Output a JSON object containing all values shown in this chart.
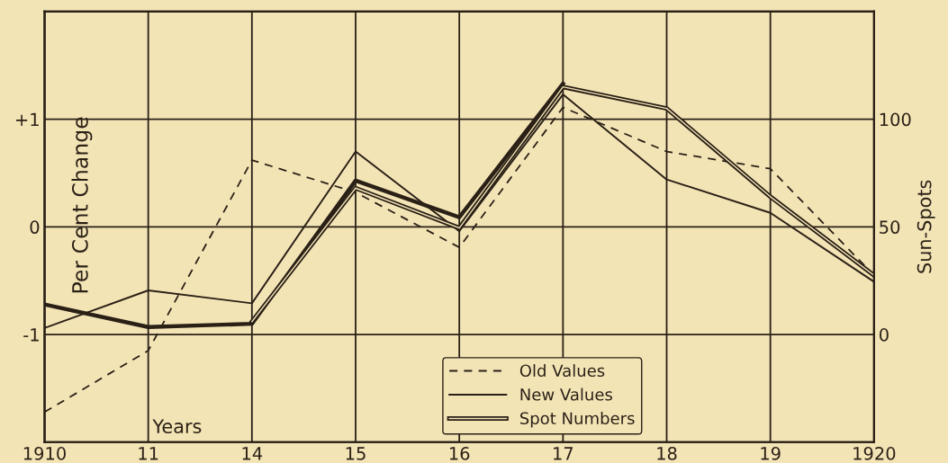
{
  "chart_data": {
    "type": "line",
    "ylabel": "Per Cent Change",
    "y2label": "Sun-Spots",
    "xlabel": "Years",
    "categories": [
      "1910",
      "11",
      "14",
      "15",
      "16",
      "17",
      "18",
      "19",
      "1920"
    ],
    "ylim": [
      -2,
      2
    ],
    "yticks": [
      {
        "value": 1,
        "label": "+1"
      },
      0,
      {
        "value": -1,
        "label": "-1"
      }
    ],
    "y2lim": [
      -50,
      150
    ],
    "y2ticks": [
      0,
      50,
      100
    ],
    "grid": true,
    "legend": "bottom",
    "series": [
      {
        "name": "Old Values",
        "color": "#2a2016",
        "line_style": "dashed",
        "values": [
          -1.72,
          -1.15,
          0.62,
          0.32,
          -0.19,
          1.11,
          0.7,
          0.54,
          -0.45
        ]
      },
      {
        "name": "New Values",
        "color": "#2a2016",
        "line_style": "solid",
        "values": [
          -0.94,
          -0.59,
          -0.71,
          0.7,
          -0.04,
          1.23,
          0.44,
          0.13,
          -0.51
        ]
      },
      {
        "name": "Spot Numbers",
        "line_style": "solid",
        "axis": "y2",
        "color": "#2a2016",
        "values": [
          null,
          null,
          6,
          68,
          49.5,
          115,
          105,
          64,
          27.5
        ]
      },
      {
        "color": "#2a2016",
        "line_style": "solid",
        "values": [
          -0.72,
          -0.93,
          -0.9,
          0.43,
          0.09,
          1.33,
          null,
          null,
          null
        ]
      }
    ]
  }
}
